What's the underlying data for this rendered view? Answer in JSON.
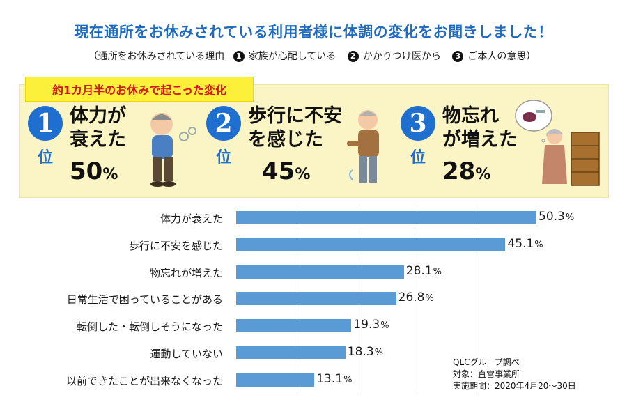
{
  "title": "現在通所をお休みされている利用者様に体調の変化をお聞きしました！",
  "reasons": {
    "prefix": "（通所をお休みされている理由",
    "items": [
      {
        "num": "1",
        "text": "家族が心配している"
      },
      {
        "num": "2",
        "text": "かかりつけ医から"
      },
      {
        "num": "3",
        "text": "ご本人の意思）"
      }
    ]
  },
  "panel": {
    "tag": "約1カ月半のお休みで起こった変化",
    "rank_suffix": "位",
    "ranks": [
      {
        "num": "1",
        "line1": "体力が",
        "line2": "衰えた",
        "pct": "50",
        "unit": "%"
      },
      {
        "num": "2",
        "line1": "歩行に不安",
        "line2": "を感じた",
        "pct": "45",
        "unit": "%"
      },
      {
        "num": "3",
        "line1": "物忘れ",
        "line2": "が増えた",
        "pct": "28",
        "unit": "%"
      }
    ]
  },
  "chart_data": {
    "type": "bar",
    "orientation": "horizontal",
    "categories": [
      "体力が衰えた",
      "歩行に不安を感じた",
      "物忘れが増えた",
      "日常生活で困っていることがある",
      "転倒した・転倒しそうになった",
      "運動していない",
      "以前できたことが出来なくなった"
    ],
    "values": [
      50.3,
      45.1,
      28.1,
      26.8,
      19.3,
      18.3,
      13.1
    ],
    "value_labels": [
      "50.3",
      "45.1",
      "28.1",
      "26.8",
      "19.3",
      "18.3",
      "13.1"
    ],
    "unit": "%",
    "xlim": [
      0,
      50.3
    ],
    "grid": true,
    "color": "#5b9bd5"
  },
  "source": {
    "line1": "QLCグループ調べ",
    "line2": "対象：直営事業所",
    "line3": "実施期間：2020年4月20～30日"
  },
  "colors": {
    "title": "#1f6bbf",
    "badge": "#1e6fcf",
    "tag_bg": "#fdf03b",
    "tag_text": "#d01818",
    "panel_bg": "#fbf5c6"
  }
}
